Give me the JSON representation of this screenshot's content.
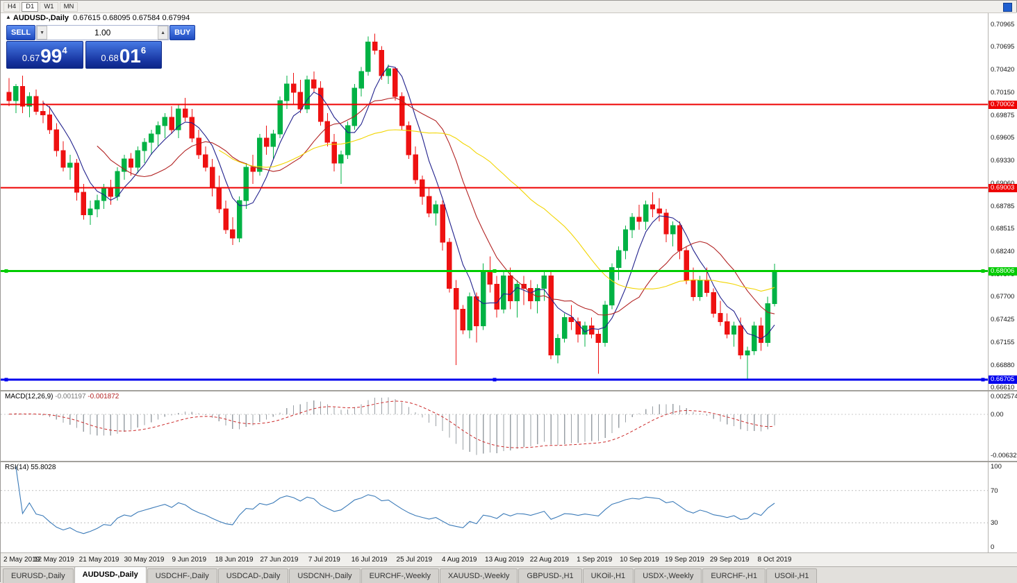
{
  "toolbar": {
    "timeframes": [
      "H4",
      "D1",
      "W1",
      "MN"
    ]
  },
  "chart": {
    "symbol_title": "AUDUSD-,Daily",
    "ohlc": "0.67615 0.68095 0.67584 0.67994"
  },
  "icons": {
    "collapse": "▲",
    "step_down": "▼",
    "step_up": "▲"
  },
  "trade_panel": {
    "sell_label": "SELL",
    "buy_label": "BUY",
    "volume": "1.00",
    "sell_price_small": "0.67",
    "sell_price_big": "99",
    "sell_price_sup": "4",
    "buy_price_small": "0.68",
    "buy_price_big": "01",
    "buy_price_sup": "6"
  },
  "price_axis": {
    "labels": [
      "0.70965",
      "0.70695",
      "0.70420",
      "0.70150",
      "0.69875",
      "0.69605",
      "0.69330",
      "0.69060",
      "0.68785",
      "0.68515",
      "0.68240",
      "0.67970",
      "0.67700",
      "0.67425",
      "0.67155",
      "0.66880",
      "0.66610"
    ]
  },
  "indicators": {
    "macd": {
      "label": "MACD(12,26,9)",
      "value_main": "-0.001197",
      "value_signal": "-0.001872",
      "axis": [
        "0.002574",
        "0.00",
        "-0.006326"
      ]
    },
    "rsi": {
      "label": "RSI(14)",
      "value": "55.8028",
      "axis": [
        "100",
        "70",
        "30",
        "0"
      ]
    }
  },
  "time_axis": {
    "labels": [
      "2 May 2019",
      "12 May 2019",
      "21 May 2019",
      "30 May 2019",
      "9 Jun 2019",
      "18 Jun 2019",
      "27 Jun 2019",
      "7 Jul 2019",
      "16 Jul 2019",
      "25 Jul 2019",
      "4 Aug 2019",
      "13 Aug 2019",
      "22 Aug 2019",
      "1 Sep 2019",
      "10 Sep 2019",
      "19 Sep 2019",
      "29 Sep 2019",
      "8 Oct 2019"
    ]
  },
  "tabs": [
    {
      "label": "EURUSD-,Daily",
      "active": false
    },
    {
      "label": "AUDUSD-,Daily",
      "active": true
    },
    {
      "label": "USDCHF-,Daily",
      "active": false
    },
    {
      "label": "USDCAD-,Daily",
      "active": false
    },
    {
      "label": "USDCNH-,Daily",
      "active": false
    },
    {
      "label": "EURCHF-,Weekly",
      "active": false
    },
    {
      "label": "XAUUSD-,Weekly",
      "active": false
    },
    {
      "label": "GBPUSD-,H1",
      "active": false
    },
    {
      "label": "UKOil-,H1",
      "active": false
    },
    {
      "label": "USDX-,Weekly",
      "active": false
    },
    {
      "label": "EURCHF-,H1",
      "active": false
    },
    {
      "label": "USOil-,H1",
      "active": false
    }
  ],
  "chart_data": {
    "type": "candlestick",
    "symbol": "AUDUSD",
    "timeframe": "Daily",
    "price_range": {
      "top": 0.71105,
      "bottom": 0.6658
    },
    "colors": {
      "up": "#00b244",
      "down": "#ee1111"
    },
    "ma": [
      {
        "period": 6,
        "color": "#20208c"
      },
      {
        "period": 14,
        "color": "#b22222"
      },
      {
        "period": 32,
        "color": "#f2d500"
      }
    ],
    "hlines": [
      {
        "price": 0.70002,
        "tag": "0.70002",
        "color": "#ee0000",
        "width": 2,
        "handles": false
      },
      {
        "price": 0.69003,
        "tag": "0.69003",
        "color": "#ee0000",
        "width": 2,
        "handles": false
      },
      {
        "price": 0.68006,
        "tag": "0.68006",
        "color": "#00cc00",
        "width": 3,
        "handles": true
      },
      {
        "price": 0.66705,
        "tag": "0.66705",
        "color": "#0000ee",
        "width": 3,
        "handles": true
      }
    ],
    "candles": [
      [
        0.7015,
        0.7032,
        0.6998,
        0.7005
      ],
      [
        0.7005,
        0.7025,
        0.699,
        0.7022
      ],
      [
        0.7022,
        0.7035,
        0.699,
        0.6998
      ],
      [
        0.6998,
        0.7015,
        0.6985,
        0.701
      ],
      [
        0.701,
        0.7018,
        0.6988,
        0.6992
      ],
      [
        0.6992,
        0.7005,
        0.6978,
        0.6988
      ],
      [
        0.6988,
        0.6998,
        0.6965,
        0.697
      ],
      [
        0.697,
        0.6978,
        0.6938,
        0.6945
      ],
      [
        0.6945,
        0.6956,
        0.692,
        0.6925
      ],
      [
        0.6925,
        0.694,
        0.691,
        0.693
      ],
      [
        0.693,
        0.6935,
        0.6885,
        0.6895
      ],
      [
        0.6895,
        0.6905,
        0.6862,
        0.6868
      ],
      [
        0.6868,
        0.6885,
        0.6856,
        0.6875
      ],
      [
        0.6875,
        0.6892,
        0.6865,
        0.6885
      ],
      [
        0.6885,
        0.6905,
        0.6875,
        0.69
      ],
      [
        0.69,
        0.691,
        0.688,
        0.689
      ],
      [
        0.689,
        0.6925,
        0.6885,
        0.692
      ],
      [
        0.692,
        0.694,
        0.691,
        0.6935
      ],
      [
        0.6935,
        0.6942,
        0.6915,
        0.6925
      ],
      [
        0.6925,
        0.695,
        0.6918,
        0.6945
      ],
      [
        0.6945,
        0.696,
        0.693,
        0.6955
      ],
      [
        0.6955,
        0.697,
        0.694,
        0.6965
      ],
      [
        0.6965,
        0.698,
        0.695,
        0.6975
      ],
      [
        0.6975,
        0.699,
        0.696,
        0.6985
      ],
      [
        0.6985,
        0.6998,
        0.6965,
        0.697
      ],
      [
        0.697,
        0.7,
        0.696,
        0.6995
      ],
      [
        0.6995,
        0.7008,
        0.698,
        0.6985
      ],
      [
        0.6985,
        0.6995,
        0.6955,
        0.696
      ],
      [
        0.696,
        0.697,
        0.6935,
        0.694
      ],
      [
        0.694,
        0.695,
        0.692,
        0.6925
      ],
      [
        0.6925,
        0.6935,
        0.689,
        0.69
      ],
      [
        0.69,
        0.6915,
        0.687,
        0.6875
      ],
      [
        0.6875,
        0.6885,
        0.6845,
        0.685
      ],
      [
        0.685,
        0.6865,
        0.6832,
        0.684
      ],
      [
        0.684,
        0.689,
        0.6835,
        0.6885
      ],
      [
        0.6885,
        0.693,
        0.6875,
        0.6925
      ],
      [
        0.6925,
        0.694,
        0.6905,
        0.692
      ],
      [
        0.692,
        0.6965,
        0.6915,
        0.696
      ],
      [
        0.696,
        0.6975,
        0.694,
        0.695
      ],
      [
        0.695,
        0.697,
        0.6935,
        0.6965
      ],
      [
        0.6965,
        0.701,
        0.696,
        0.7005
      ],
      [
        0.7005,
        0.7035,
        0.6995,
        0.7025
      ],
      [
        0.7025,
        0.7038,
        0.7,
        0.7015
      ],
      [
        0.7015,
        0.703,
        0.699,
        0.6995
      ],
      [
        0.6995,
        0.7035,
        0.699,
        0.703
      ],
      [
        0.703,
        0.704,
        0.7015,
        0.702
      ],
      [
        0.702,
        0.7028,
        0.6975,
        0.698
      ],
      [
        0.698,
        0.699,
        0.695,
        0.6955
      ],
      [
        0.6955,
        0.6965,
        0.692,
        0.693
      ],
      [
        0.693,
        0.6945,
        0.6905,
        0.694
      ],
      [
        0.694,
        0.698,
        0.6935,
        0.6975
      ],
      [
        0.6975,
        0.7025,
        0.697,
        0.702
      ],
      [
        0.702,
        0.7045,
        0.701,
        0.704
      ],
      [
        0.704,
        0.7082,
        0.7035,
        0.7075
      ],
      [
        0.7075,
        0.7085,
        0.706,
        0.7065
      ],
      [
        0.7065,
        0.707,
        0.703,
        0.7035
      ],
      [
        0.7035,
        0.7048,
        0.7025,
        0.7043
      ],
      [
        0.7043,
        0.7045,
        0.7005,
        0.701
      ],
      [
        0.701,
        0.7015,
        0.697,
        0.6975
      ],
      [
        0.6975,
        0.698,
        0.6935,
        0.694
      ],
      [
        0.694,
        0.695,
        0.6905,
        0.691
      ],
      [
        0.691,
        0.6915,
        0.688,
        0.689
      ],
      [
        0.689,
        0.69,
        0.6865,
        0.687
      ],
      [
        0.687,
        0.6885,
        0.6855,
        0.688
      ],
      [
        0.688,
        0.6885,
        0.6825,
        0.6835
      ],
      [
        0.6835,
        0.684,
        0.6775,
        0.678
      ],
      [
        0.678,
        0.679,
        0.6688,
        0.6755
      ],
      [
        0.6755,
        0.676,
        0.6725,
        0.673
      ],
      [
        0.673,
        0.6775,
        0.672,
        0.677
      ],
      [
        0.677,
        0.6775,
        0.6715,
        0.6735
      ],
      [
        0.6735,
        0.681,
        0.673,
        0.68
      ],
      [
        0.68,
        0.6818,
        0.6775,
        0.6785
      ],
      [
        0.6785,
        0.6795,
        0.6745,
        0.6755
      ],
      [
        0.6755,
        0.68,
        0.675,
        0.6795
      ],
      [
        0.6795,
        0.6805,
        0.6755,
        0.6765
      ],
      [
        0.6765,
        0.679,
        0.6745,
        0.6785
      ],
      [
        0.6785,
        0.6795,
        0.676,
        0.678
      ],
      [
        0.678,
        0.679,
        0.6755,
        0.6765
      ],
      [
        0.6765,
        0.6785,
        0.675,
        0.678
      ],
      [
        0.678,
        0.68,
        0.6765,
        0.6795
      ],
      [
        0.6795,
        0.68,
        0.6695,
        0.67
      ],
      [
        0.67,
        0.6725,
        0.669,
        0.672
      ],
      [
        0.672,
        0.675,
        0.6715,
        0.6745
      ],
      [
        0.6745,
        0.676,
        0.673,
        0.674
      ],
      [
        0.674,
        0.6745,
        0.6715,
        0.6725
      ],
      [
        0.6725,
        0.674,
        0.671,
        0.6735
      ],
      [
        0.6735,
        0.6745,
        0.672,
        0.6725
      ],
      [
        0.6725,
        0.673,
        0.66775,
        0.6715
      ],
      [
        0.6715,
        0.6765,
        0.671,
        0.676
      ],
      [
        0.676,
        0.681,
        0.6755,
        0.6805
      ],
      [
        0.6805,
        0.683,
        0.679,
        0.6825
      ],
      [
        0.6825,
        0.6855,
        0.6815,
        0.685
      ],
      [
        0.685,
        0.687,
        0.684,
        0.6865
      ],
      [
        0.6865,
        0.688,
        0.685,
        0.686
      ],
      [
        0.686,
        0.6885,
        0.685,
        0.688
      ],
      [
        0.688,
        0.6895,
        0.6865,
        0.6875
      ],
      [
        0.6875,
        0.6888,
        0.686,
        0.687
      ],
      [
        0.687,
        0.6875,
        0.6835,
        0.6845
      ],
      [
        0.6845,
        0.686,
        0.683,
        0.6855
      ],
      [
        0.6855,
        0.686,
        0.6815,
        0.6825
      ],
      [
        0.6825,
        0.683,
        0.6785,
        0.679
      ],
      [
        0.679,
        0.6805,
        0.6765,
        0.677
      ],
      [
        0.677,
        0.6795,
        0.6765,
        0.679
      ],
      [
        0.679,
        0.6805,
        0.677,
        0.6775
      ],
      [
        0.6775,
        0.678,
        0.6745,
        0.675
      ],
      [
        0.675,
        0.6765,
        0.6735,
        0.674
      ],
      [
        0.674,
        0.675,
        0.672,
        0.6725
      ],
      [
        0.6725,
        0.674,
        0.671,
        0.6735
      ],
      [
        0.6735,
        0.6745,
        0.6695,
        0.67
      ],
      [
        0.67,
        0.671,
        0.66705,
        0.6705
      ],
      [
        0.6705,
        0.674,
        0.67,
        0.6735
      ],
      [
        0.6735,
        0.6745,
        0.6705,
        0.6715
      ],
      [
        0.6715,
        0.677,
        0.671,
        0.67615
      ],
      [
        0.67615,
        0.68095,
        0.67584,
        0.67994
      ]
    ]
  }
}
